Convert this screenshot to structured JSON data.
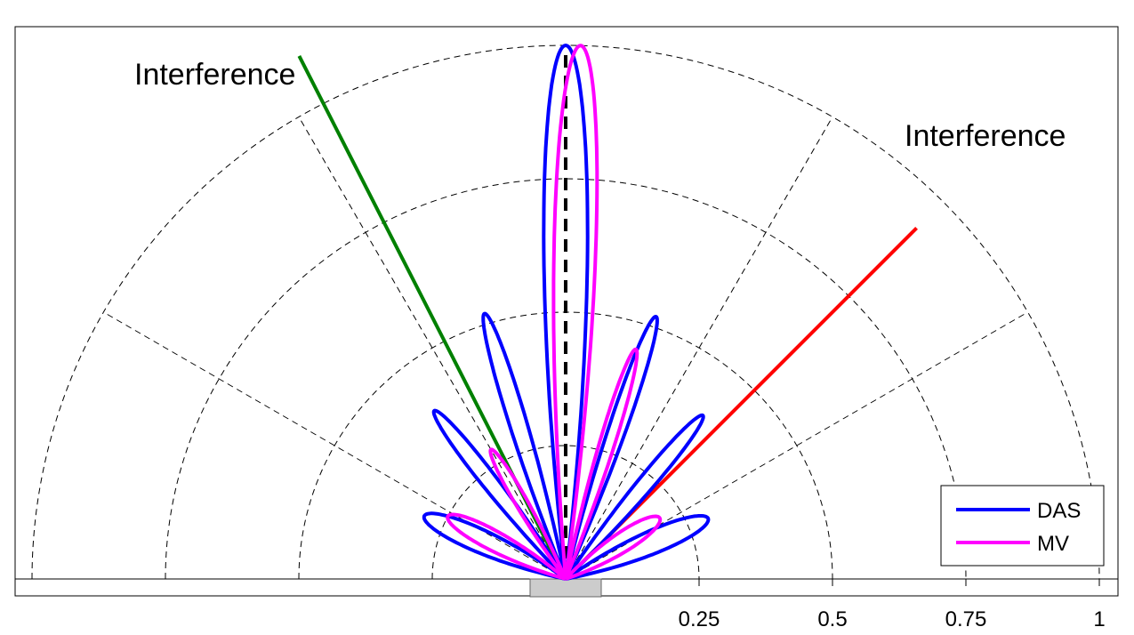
{
  "chart_data": {
    "type": "polar",
    "angular_range_deg": [
      -90,
      90
    ],
    "radial_range": [
      0,
      1
    ],
    "grid": true,
    "radial_ticks": [
      0.25,
      0.5,
      0.75,
      1
    ],
    "radial_tick_labels": [
      "0.25",
      "0.5",
      "0.75",
      "1"
    ],
    "angular_grid_deg": [
      -60,
      -30,
      0,
      30,
      60
    ],
    "legend_position": "bottom-right",
    "colors": {
      "das": "#0000ff",
      "mv": "#ff00ff",
      "steer": "#000000",
      "interference_left": "#008000",
      "interference_right": "#ff0000"
    },
    "series": [
      {
        "name": "DAS",
        "color": "#0000ff",
        "lobes": [
          {
            "center_deg": 0,
            "half_width_deg": 6.6,
            "amplitude": 1.0
          },
          {
            "center_deg": -17,
            "half_width_deg": 5.1,
            "amplitude": 0.52
          },
          {
            "center_deg": 19,
            "half_width_deg": 5.1,
            "amplitude": 0.52
          },
          {
            "center_deg": -38,
            "half_width_deg": 6.0,
            "amplitude": 0.4
          },
          {
            "center_deg": 40,
            "half_width_deg": 6.0,
            "amplitude": 0.4
          },
          {
            "center_deg": -66,
            "half_width_deg": 12.0,
            "amplitude": 0.29
          },
          {
            "center_deg": 67,
            "half_width_deg": 12.0,
            "amplitude": 0.29
          }
        ]
      },
      {
        "name": "MV",
        "color": "#ff00ff",
        "lobes": [
          {
            "center_deg": 1.6,
            "half_width_deg": 6.3,
            "amplitude": 1.0
          },
          {
            "center_deg": 17,
            "half_width_deg": 5.1,
            "amplitude": 0.45
          },
          {
            "center_deg": -30,
            "half_width_deg": 6.5,
            "amplitude": 0.28
          },
          {
            "center_deg": -62,
            "half_width_deg": 12.0,
            "amplitude": 0.25
          },
          {
            "center_deg": 57,
            "half_width_deg": 14.0,
            "amplitude": 0.21
          }
        ]
      }
    ],
    "lines": [
      {
        "name": "steering",
        "angle_deg": 0,
        "length": 1.0,
        "style": "dashed",
        "color": "#000000"
      },
      {
        "name": "interference-left",
        "angle_deg": -27,
        "length": 1.1,
        "style": "solid",
        "color": "#008000"
      },
      {
        "name": "interference-right",
        "angle_deg": 45,
        "length": 0.93,
        "style": "solid",
        "color": "#ff0000"
      }
    ],
    "annotations": [
      {
        "id": "left",
        "text": "Interference"
      },
      {
        "id": "right",
        "text": "Interference"
      }
    ],
    "legend": [
      {
        "label": "DAS",
        "color": "#0000ff"
      },
      {
        "label": "MV",
        "color": "#ff00ff"
      }
    ]
  }
}
